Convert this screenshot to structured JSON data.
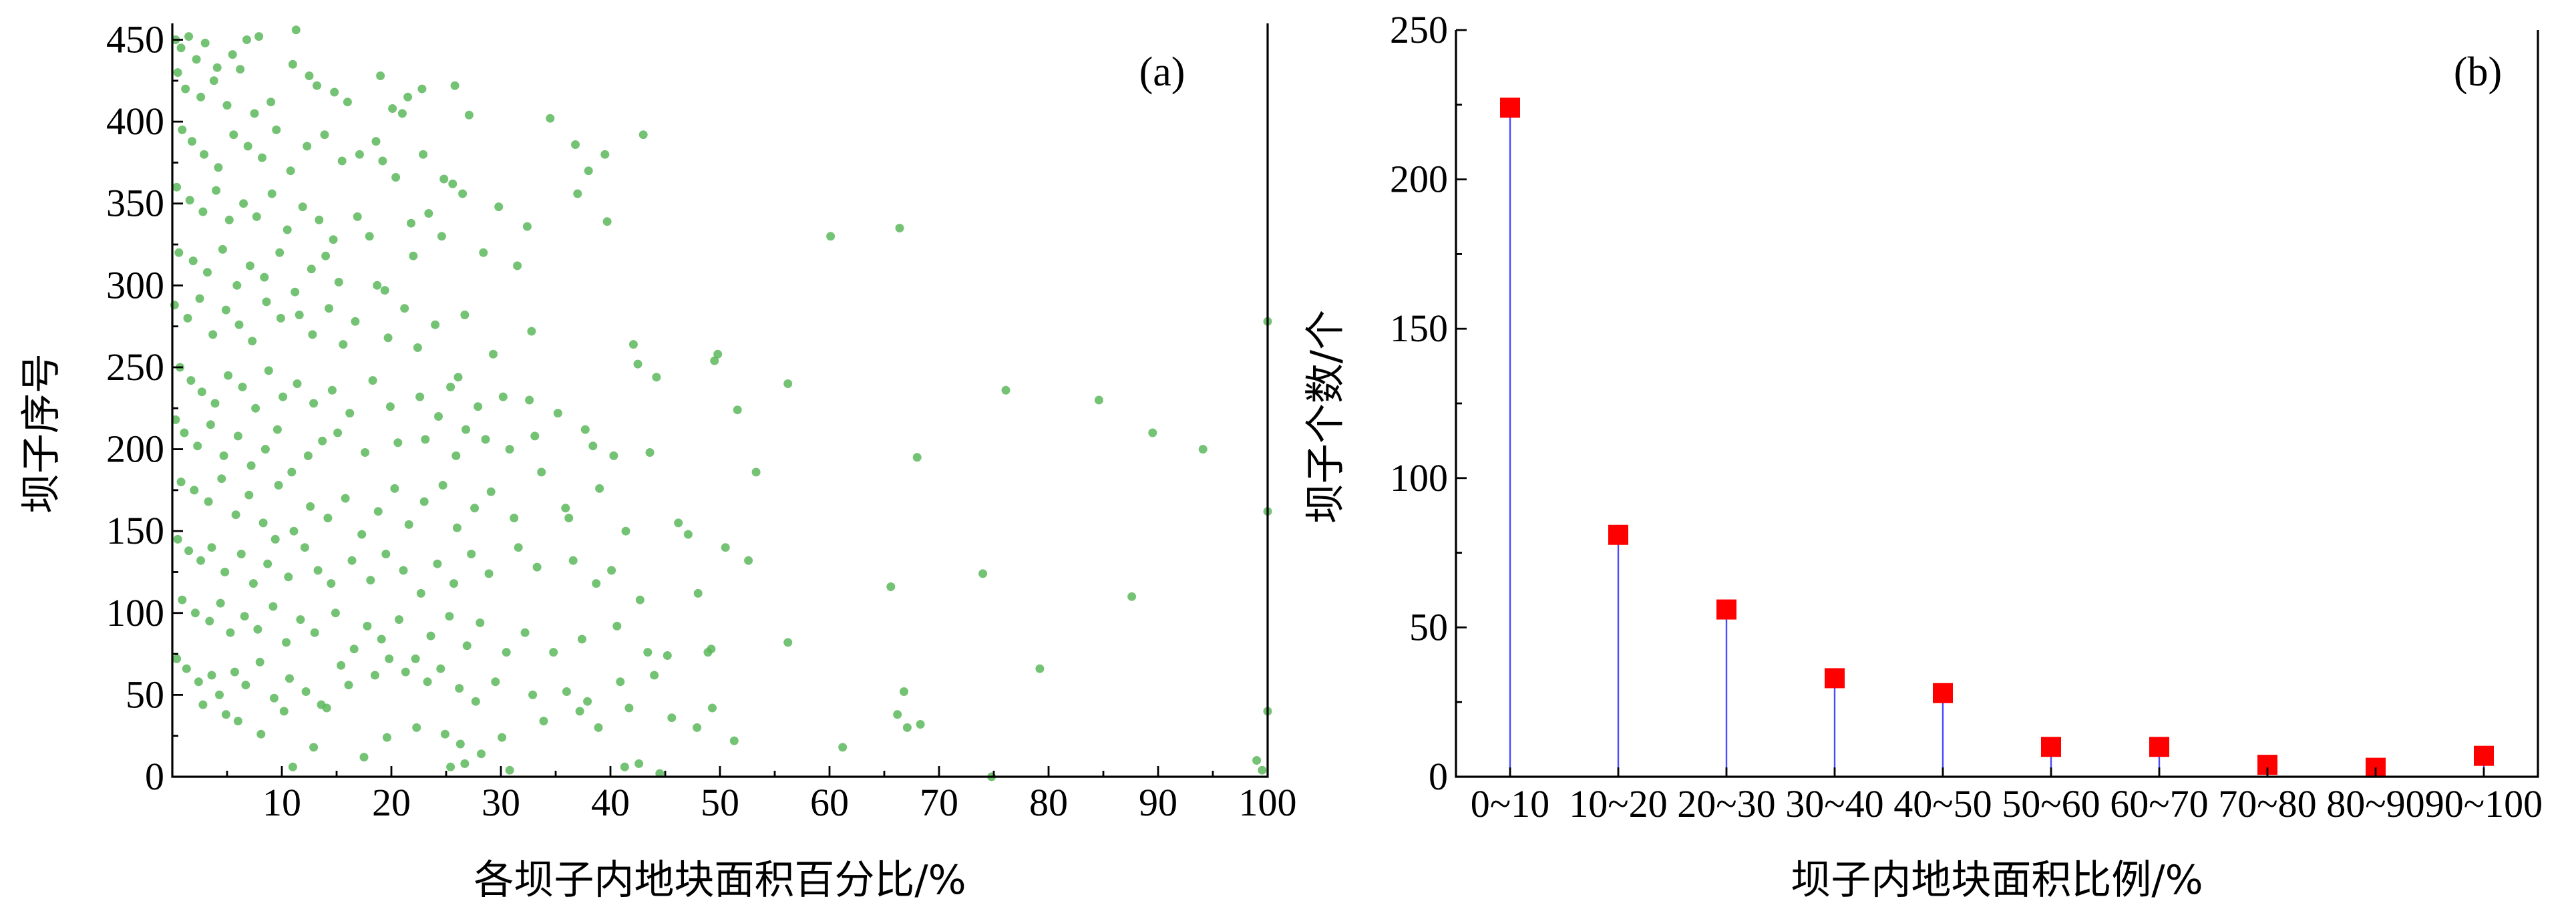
{
  "chart_data": [
    {
      "type": "scatter",
      "panel_label": "(a)",
      "xlabel": "各坝子内地块面积百分比/%",
      "ylabel": "坝子序号",
      "xlim": [
        0,
        100
      ],
      "ylim": [
        0,
        460
      ],
      "x_ticks": [
        "10",
        "20",
        "30",
        "40",
        "50",
        "60",
        "70",
        "80",
        "90",
        "100"
      ],
      "y_ticks": [
        "0",
        "50",
        "100",
        "150",
        "200",
        "250",
        "300",
        "350",
        "400",
        "450"
      ],
      "point_color": "#5cb85c",
      "grid": false,
      "points": [
        [
          0.3,
          450
        ],
        [
          0.8,
          445
        ],
        [
          1.5,
          452
        ],
        [
          2.2,
          438
        ],
        [
          3.0,
          448
        ],
        [
          4.1,
          433
        ],
        [
          5.5,
          441
        ],
        [
          6.8,
          450
        ],
        [
          7.9,
          452
        ],
        [
          11.3,
          456
        ],
        [
          0.5,
          430
        ],
        [
          1.2,
          420
        ],
        [
          2.6,
          415
        ],
        [
          3.8,
          425
        ],
        [
          5.0,
          410
        ],
        [
          6.2,
          432
        ],
        [
          7.5,
          405
        ],
        [
          9.0,
          412
        ],
        [
          11.0,
          435
        ],
        [
          12.5,
          428
        ],
        [
          13.2,
          422
        ],
        [
          14.8,
          418
        ],
        [
          16.0,
          412
        ],
        [
          19.0,
          428
        ],
        [
          20.1,
          408
        ],
        [
          21.5,
          415
        ],
        [
          22.8,
          420
        ],
        [
          25.8,
          422
        ],
        [
          27.1,
          404
        ],
        [
          21.0,
          405
        ],
        [
          0.9,
          395
        ],
        [
          1.8,
          388
        ],
        [
          2.9,
          380
        ],
        [
          4.2,
          372
        ],
        [
          5.6,
          392
        ],
        [
          6.9,
          385
        ],
        [
          8.2,
          378
        ],
        [
          9.5,
          395
        ],
        [
          10.8,
          370
        ],
        [
          12.3,
          385
        ],
        [
          13.9,
          392
        ],
        [
          15.5,
          376
        ],
        [
          17.1,
          380
        ],
        [
          18.6,
          388
        ],
        [
          19.2,
          376
        ],
        [
          20.4,
          366
        ],
        [
          22.9,
          380
        ],
        [
          24.8,
          365
        ],
        [
          25.6,
          362
        ],
        [
          26.5,
          356
        ],
        [
          34.5,
          402
        ],
        [
          36.8,
          386
        ],
        [
          38.0,
          370
        ],
        [
          39.5,
          380
        ],
        [
          43.0,
          392
        ],
        [
          0.4,
          360
        ],
        [
          1.6,
          352
        ],
        [
          2.8,
          345
        ],
        [
          4.0,
          358
        ],
        [
          5.2,
          340
        ],
        [
          6.5,
          350
        ],
        [
          7.7,
          342
        ],
        [
          9.1,
          356
        ],
        [
          10.5,
          334
        ],
        [
          11.9,
          348
        ],
        [
          13.4,
          340
        ],
        [
          14.7,
          328
        ],
        [
          16.9,
          342
        ],
        [
          18.0,
          330
        ],
        [
          21.8,
          338
        ],
        [
          23.4,
          344
        ],
        [
          24.6,
          330
        ],
        [
          29.8,
          348
        ],
        [
          32.4,
          336
        ],
        [
          37.0,
          356
        ],
        [
          39.7,
          339
        ],
        [
          0.6,
          320
        ],
        [
          1.9,
          315
        ],
        [
          3.2,
          308
        ],
        [
          4.6,
          322
        ],
        [
          5.9,
          300
        ],
        [
          7.1,
          312
        ],
        [
          8.4,
          305
        ],
        [
          9.8,
          320
        ],
        [
          11.2,
          296
        ],
        [
          12.7,
          310
        ],
        [
          14.0,
          318
        ],
        [
          15.2,
          302
        ],
        [
          18.7,
          300
        ],
        [
          19.4,
          297
        ],
        [
          22.0,
          318
        ],
        [
          28.4,
          320
        ],
        [
          31.5,
          312
        ],
        [
          60.1,
          330
        ],
        [
          66.4,
          335
        ],
        [
          0.2,
          288
        ],
        [
          1.4,
          280
        ],
        [
          2.5,
          292
        ],
        [
          3.7,
          270
        ],
        [
          4.9,
          285
        ],
        [
          6.1,
          276
        ],
        [
          7.3,
          266
        ],
        [
          8.6,
          290
        ],
        [
          9.9,
          280
        ],
        [
          11.6,
          282
        ],
        [
          12.8,
          270
        ],
        [
          14.3,
          286
        ],
        [
          15.6,
          264
        ],
        [
          16.7,
          278
        ],
        [
          19.7,
          268
        ],
        [
          21.2,
          286
        ],
        [
          22.4,
          262
        ],
        [
          24.0,
          276
        ],
        [
          26.7,
          282
        ],
        [
          29.3,
          258
        ],
        [
          32.8,
          272
        ],
        [
          42.1,
          264
        ],
        [
          42.5,
          252
        ],
        [
          44.2,
          244
        ],
        [
          49.5,
          254
        ],
        [
          49.8,
          258
        ],
        [
          100,
          278
        ],
        [
          0.7,
          250
        ],
        [
          1.7,
          242
        ],
        [
          2.7,
          235
        ],
        [
          3.9,
          228
        ],
        [
          5.1,
          245
        ],
        [
          6.4,
          238
        ],
        [
          7.6,
          225
        ],
        [
          8.8,
          248
        ],
        [
          10.1,
          232
        ],
        [
          11.4,
          240
        ],
        [
          12.9,
          228
        ],
        [
          14.6,
          236
        ],
        [
          16.2,
          222
        ],
        [
          18.3,
          242
        ],
        [
          19.9,
          226
        ],
        [
          22.6,
          232
        ],
        [
          24.3,
          220
        ],
        [
          25.4,
          238
        ],
        [
          26.1,
          244
        ],
        [
          27.9,
          226
        ],
        [
          30.2,
          232
        ],
        [
          32.6,
          230
        ],
        [
          35.2,
          222
        ],
        [
          56.2,
          240
        ],
        [
          76.1,
          236
        ],
        [
          84.6,
          230
        ],
        [
          0.3,
          218
        ],
        [
          1.1,
          210
        ],
        [
          2.3,
          202
        ],
        [
          3.5,
          215
        ],
        [
          4.7,
          196
        ],
        [
          6.0,
          208
        ],
        [
          7.2,
          190
        ],
        [
          8.5,
          200
        ],
        [
          9.6,
          212
        ],
        [
          10.9,
          186
        ],
        [
          12.4,
          196
        ],
        [
          13.7,
          205
        ],
        [
          15.1,
          210
        ],
        [
          17.6,
          198
        ],
        [
          20.6,
          204
        ],
        [
          23.1,
          206
        ],
        [
          25.9,
          196
        ],
        [
          26.8,
          212
        ],
        [
          28.6,
          206
        ],
        [
          30.8,
          200
        ],
        [
          33.1,
          208
        ],
        [
          37.7,
          212
        ],
        [
          38.4,
          202
        ],
        [
          40.3,
          196
        ],
        [
          43.6,
          198
        ],
        [
          51.6,
          224
        ],
        [
          53.3,
          186
        ],
        [
          68.0,
          195
        ],
        [
          89.5,
          210
        ],
        [
          94.1,
          200
        ],
        [
          0.8,
          180
        ],
        [
          2.0,
          175
        ],
        [
          3.3,
          168
        ],
        [
          4.5,
          182
        ],
        [
          5.8,
          160
        ],
        [
          7.0,
          172
        ],
        [
          8.3,
          155
        ],
        [
          9.7,
          178
        ],
        [
          11.1,
          150
        ],
        [
          12.6,
          165
        ],
        [
          14.2,
          158
        ],
        [
          15.8,
          170
        ],
        [
          17.3,
          148
        ],
        [
          18.8,
          162
        ],
        [
          20.3,
          176
        ],
        [
          21.6,
          154
        ],
        [
          23.0,
          168
        ],
        [
          24.7,
          178
        ],
        [
          26.0,
          152
        ],
        [
          27.6,
          164
        ],
        [
          29.1,
          174
        ],
        [
          31.2,
          158
        ],
        [
          33.7,
          186
        ],
        [
          35.9,
          164
        ],
        [
          36.2,
          158
        ],
        [
          39.0,
          176
        ],
        [
          41.4,
          150
        ],
        [
          46.2,
          155
        ],
        [
          47.1,
          148
        ],
        [
          100,
          162
        ],
        [
          0.5,
          145
        ],
        [
          1.5,
          138
        ],
        [
          2.6,
          132
        ],
        [
          3.6,
          140
        ],
        [
          4.8,
          125
        ],
        [
          6.3,
          136
        ],
        [
          7.4,
          118
        ],
        [
          8.7,
          130
        ],
        [
          9.4,
          145
        ],
        [
          10.6,
          122
        ],
        [
          12.1,
          140
        ],
        [
          13.3,
          126
        ],
        [
          14.5,
          118
        ],
        [
          16.4,
          132
        ],
        [
          18.1,
          120
        ],
        [
          19.5,
          136
        ],
        [
          21.1,
          126
        ],
        [
          22.7,
          112
        ],
        [
          24.2,
          130
        ],
        [
          25.7,
          118
        ],
        [
          27.3,
          136
        ],
        [
          28.9,
          124
        ],
        [
          31.6,
          140
        ],
        [
          33.3,
          128
        ],
        [
          36.6,
          132
        ],
        [
          38.7,
          118
        ],
        [
          40.1,
          126
        ],
        [
          42.7,
          108
        ],
        [
          48.0,
          112
        ],
        [
          50.5,
          140
        ],
        [
          52.6,
          132
        ],
        [
          65.6,
          116
        ],
        [
          74.0,
          124
        ],
        [
          87.6,
          110
        ],
        [
          0.9,
          108
        ],
        [
          2.1,
          100
        ],
        [
          3.4,
          95
        ],
        [
          4.4,
          106
        ],
        [
          5.3,
          88
        ],
        [
          6.6,
          98
        ],
        [
          7.8,
          90
        ],
        [
          9.2,
          104
        ],
        [
          10.4,
          82
        ],
        [
          11.7,
          96
        ],
        [
          13.0,
          88
        ],
        [
          14.9,
          100
        ],
        [
          16.6,
          78
        ],
        [
          17.8,
          92
        ],
        [
          19.1,
          84
        ],
        [
          20.7,
          96
        ],
        [
          22.2,
          72
        ],
        [
          23.6,
          86
        ],
        [
          25.3,
          98
        ],
        [
          26.9,
          80
        ],
        [
          28.1,
          94
        ],
        [
          30.5,
          76
        ],
        [
          32.2,
          88
        ],
        [
          34.8,
          76
        ],
        [
          37.4,
          84
        ],
        [
          40.6,
          92
        ],
        [
          43.4,
          76
        ],
        [
          45.2,
          74
        ],
        [
          48.9,
          76
        ],
        [
          49.2,
          78
        ],
        [
          56.2,
          82
        ],
        [
          0.4,
          72
        ],
        [
          1.3,
          66
        ],
        [
          2.4,
          58
        ],
        [
          3.6,
          62
        ],
        [
          4.3,
          50
        ],
        [
          5.7,
          64
        ],
        [
          6.7,
          56
        ],
        [
          8.0,
          70
        ],
        [
          9.3,
          48
        ],
        [
          10.7,
          60
        ],
        [
          12.2,
          52
        ],
        [
          13.6,
          44
        ],
        [
          15.4,
          68
        ],
        [
          16.1,
          56
        ],
        [
          18.5,
          62
        ],
        [
          19.8,
          72
        ],
        [
          21.3,
          64
        ],
        [
          23.3,
          58
        ],
        [
          24.5,
          66
        ],
        [
          26.2,
          54
        ],
        [
          27.7,
          46
        ],
        [
          29.5,
          58
        ],
        [
          32.9,
          50
        ],
        [
          36.0,
          52
        ],
        [
          37.9,
          46
        ],
        [
          40.9,
          58
        ],
        [
          44.0,
          62
        ],
        [
          79.2,
          66
        ],
        [
          2.8,
          44
        ],
        [
          4.9,
          38
        ],
        [
          6.0,
          34
        ],
        [
          8.1,
          26
        ],
        [
          10.2,
          40
        ],
        [
          12.9,
          18
        ],
        [
          14.1,
          42
        ],
        [
          17.5,
          12
        ],
        [
          19.6,
          24
        ],
        [
          22.3,
          30
        ],
        [
          24.9,
          26
        ],
        [
          26.3,
          20
        ],
        [
          28.2,
          14
        ],
        [
          30.1,
          24
        ],
        [
          33.9,
          34
        ],
        [
          37.2,
          40
        ],
        [
          38.9,
          30
        ],
        [
          41.7,
          42
        ],
        [
          45.6,
          36
        ],
        [
          47.9,
          30
        ],
        [
          49.3,
          42
        ],
        [
          51.3,
          22
        ],
        [
          61.2,
          18
        ],
        [
          66.2,
          38
        ],
        [
          67.1,
          30
        ],
        [
          66.8,
          52
        ],
        [
          68.3,
          32
        ],
        [
          99.0,
          10
        ],
        [
          100,
          40
        ],
        [
          11.0,
          6
        ],
        [
          25.4,
          6
        ],
        [
          26.7,
          8
        ],
        [
          30.8,
          4
        ],
        [
          41.3,
          6
        ],
        [
          42.6,
          8
        ],
        [
          44.5,
          2
        ],
        [
          74.8,
          0
        ],
        [
          99.5,
          4
        ]
      ]
    },
    {
      "type": "bar",
      "style": "stem",
      "panel_label": "(b)",
      "xlabel": "坝子内地块面积比例/%",
      "ylabel": "坝子个数/个",
      "ylim": [
        0,
        250
      ],
      "y_ticks": [
        "0",
        "50",
        "100",
        "150",
        "200",
        "250"
      ],
      "categories": [
        "0~10",
        "10~20",
        "20~30",
        "30~40",
        "40~50",
        "50~60",
        "60~70",
        "70~80",
        "80~90",
        "90~100"
      ],
      "values": [
        224,
        81,
        56,
        33,
        28,
        10,
        10,
        4,
        3,
        7
      ],
      "marker_color": "#ff0000",
      "stem_color": "#4a4aff",
      "grid": false
    }
  ]
}
